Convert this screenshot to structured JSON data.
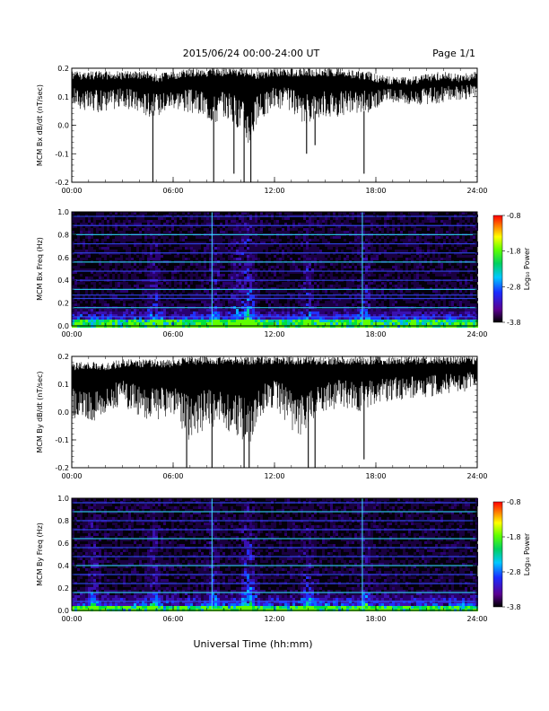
{
  "page": {
    "title": "2015/06/24  00:00-24:00 UT",
    "page_label": "Page 1/1",
    "xlabel": "Universal Time (hh:mm)"
  },
  "chart_data": [
    {
      "type": "line",
      "ylabel": "MCM Bx dB/dt (nT/sec)",
      "xlim": [
        0,
        24
      ],
      "ylim": [
        -0.2,
        0.2
      ],
      "x_ticks": [
        "00:00",
        "06:00",
        "12:00",
        "18:00",
        "24:00"
      ],
      "y_ticks": [
        "-0.2",
        "-0.1",
        "0.0",
        "0.1",
        "0.2"
      ],
      "y_tick_values": [
        -0.2,
        -0.1,
        0.0,
        0.1,
        0.2
      ],
      "envelope": {
        "t": [
          0,
          1,
          2,
          3,
          4,
          4.5,
          5,
          6,
          7,
          8,
          8.5,
          9,
          10,
          10.5,
          11,
          12,
          13,
          13.5,
          14,
          15,
          16,
          17,
          17.5,
          18,
          19,
          20,
          21,
          22,
          23,
          24
        ],
        "upper": [
          0.19,
          0.19,
          0.19,
          0.19,
          0.19,
          0.19,
          0.18,
          0.19,
          0.2,
          0.2,
          0.2,
          0.2,
          0.2,
          0.2,
          0.19,
          0.2,
          0.2,
          0.2,
          0.2,
          0.2,
          0.2,
          0.19,
          0.19,
          0.18,
          0.17,
          0.17,
          0.18,
          0.19,
          0.18,
          0.19
        ],
        "lower": [
          0.07,
          0.04,
          0.05,
          0.06,
          0.04,
          0.03,
          0.03,
          0.06,
          0.04,
          0.02,
          0.0,
          0.03,
          -0.02,
          -0.08,
          0.0,
          0.06,
          0.05,
          -0.02,
          0.01,
          0.03,
          0.03,
          0.04,
          0.04,
          0.06,
          0.08,
          0.07,
          0.07,
          0.08,
          0.09,
          0.09
        ]
      },
      "spikes": [
        [
          4.8,
          -0.2
        ],
        [
          8.4,
          -0.2
        ],
        [
          9.6,
          -0.17
        ],
        [
          10.2,
          -0.2
        ],
        [
          10.6,
          -0.2
        ],
        [
          13.9,
          -0.1
        ],
        [
          14.4,
          -0.07
        ],
        [
          17.3,
          -0.17
        ]
      ]
    },
    {
      "type": "heatmap",
      "ylabel": "MCM Bx Freq (Hz)",
      "xlim": [
        0,
        24
      ],
      "ylim": [
        0,
        1.0
      ],
      "x_ticks": [
        "00:00",
        "06:00",
        "12:00",
        "18:00",
        "24:00"
      ],
      "y_ticks": [
        "0.0",
        "0.2",
        "0.4",
        "0.6",
        "0.8",
        "1.0"
      ],
      "y_tick_values": [
        0.0,
        0.2,
        0.4,
        0.6,
        0.8,
        1.0
      ],
      "colorbar": {
        "label": "Log₁₀ Power",
        "range": [
          -3.8,
          -0.8
        ],
        "ticks": [
          "-0.8",
          "-1.8",
          "-2.8",
          "-3.8"
        ],
        "tick_values": [
          -0.8,
          -1.8,
          -2.8,
          -3.8
        ]
      },
      "interference_lines_hz": [
        0.08,
        0.16,
        0.24,
        0.27,
        0.32,
        0.4,
        0.48,
        0.56,
        0.64,
        0.72,
        0.8,
        0.88,
        0.96
      ],
      "activity_times": [
        4.8,
        8.4,
        9.6,
        10.2,
        10.5,
        13.9,
        17.3
      ],
      "vertical_lines": [
        8.3,
        17.2
      ]
    },
    {
      "type": "line",
      "ylabel": "MCM By dB/dt (nT/sec)",
      "xlim": [
        0,
        24
      ],
      "ylim": [
        -0.2,
        0.2
      ],
      "x_ticks": [
        "00:00",
        "06:00",
        "12:00",
        "18:00",
        "24:00"
      ],
      "y_ticks": [
        "-0.2",
        "-0.1",
        "0.0",
        "0.1",
        "0.2"
      ],
      "y_tick_values": [
        -0.2,
        -0.1,
        0.0,
        0.1,
        0.2
      ],
      "envelope": {
        "t": [
          0,
          1,
          2,
          3,
          4,
          5,
          6,
          7,
          8,
          9,
          10,
          10.5,
          11,
          12,
          13,
          13.5,
          14,
          15,
          16,
          17,
          18,
          19,
          20,
          21,
          22,
          23,
          24
        ],
        "upper": [
          0.18,
          0.18,
          0.18,
          0.19,
          0.19,
          0.19,
          0.19,
          0.2,
          0.2,
          0.2,
          0.2,
          0.2,
          0.2,
          0.2,
          0.2,
          0.2,
          0.2,
          0.2,
          0.2,
          0.2,
          0.2,
          0.2,
          0.2,
          0.2,
          0.2,
          0.2,
          0.2
        ],
        "lower": [
          -0.02,
          -0.05,
          0.0,
          0.02,
          -0.02,
          -0.04,
          -0.02,
          -0.12,
          -0.05,
          -0.06,
          -0.1,
          -0.12,
          -0.04,
          0.02,
          -0.06,
          -0.1,
          -0.06,
          0.0,
          0.02,
          0.0,
          0.02,
          0.03,
          0.05,
          0.05,
          0.06,
          0.07,
          0.08
        ]
      },
      "spikes": [
        [
          6.8,
          -0.2
        ],
        [
          8.3,
          -0.2
        ],
        [
          10.2,
          -0.2
        ],
        [
          10.5,
          -0.2
        ],
        [
          14.0,
          -0.2
        ],
        [
          14.4,
          -0.2
        ],
        [
          17.3,
          -0.17
        ]
      ]
    },
    {
      "type": "heatmap",
      "ylabel": "MCM By Freq (Hz)",
      "xlim": [
        0,
        24
      ],
      "ylim": [
        0,
        1.0
      ],
      "x_ticks": [
        "00:00",
        "06:00",
        "12:00",
        "18:00",
        "24:00"
      ],
      "y_ticks": [
        "0.0",
        "0.2",
        "0.4",
        "0.6",
        "0.8",
        "1.0"
      ],
      "y_tick_values": [
        0.0,
        0.2,
        0.4,
        0.6,
        0.8,
        1.0
      ],
      "colorbar": {
        "label": "Log₁₀ Power",
        "range": [
          -3.8,
          -0.8
        ],
        "ticks": [
          "-0.8",
          "-1.8",
          "-2.8",
          "-3.8"
        ],
        "tick_values": [
          -0.8,
          -1.8,
          -2.8,
          -3.8
        ]
      },
      "interference_lines_hz": [
        0.08,
        0.16,
        0.24,
        0.32,
        0.4,
        0.48,
        0.56,
        0.64,
        0.72,
        0.8,
        0.88,
        0.96
      ],
      "activity_times": [
        1.2,
        4.8,
        8.3,
        10.2,
        10.5,
        13.9,
        17.3
      ],
      "vertical_lines": [
        8.3,
        17.2
      ]
    }
  ]
}
